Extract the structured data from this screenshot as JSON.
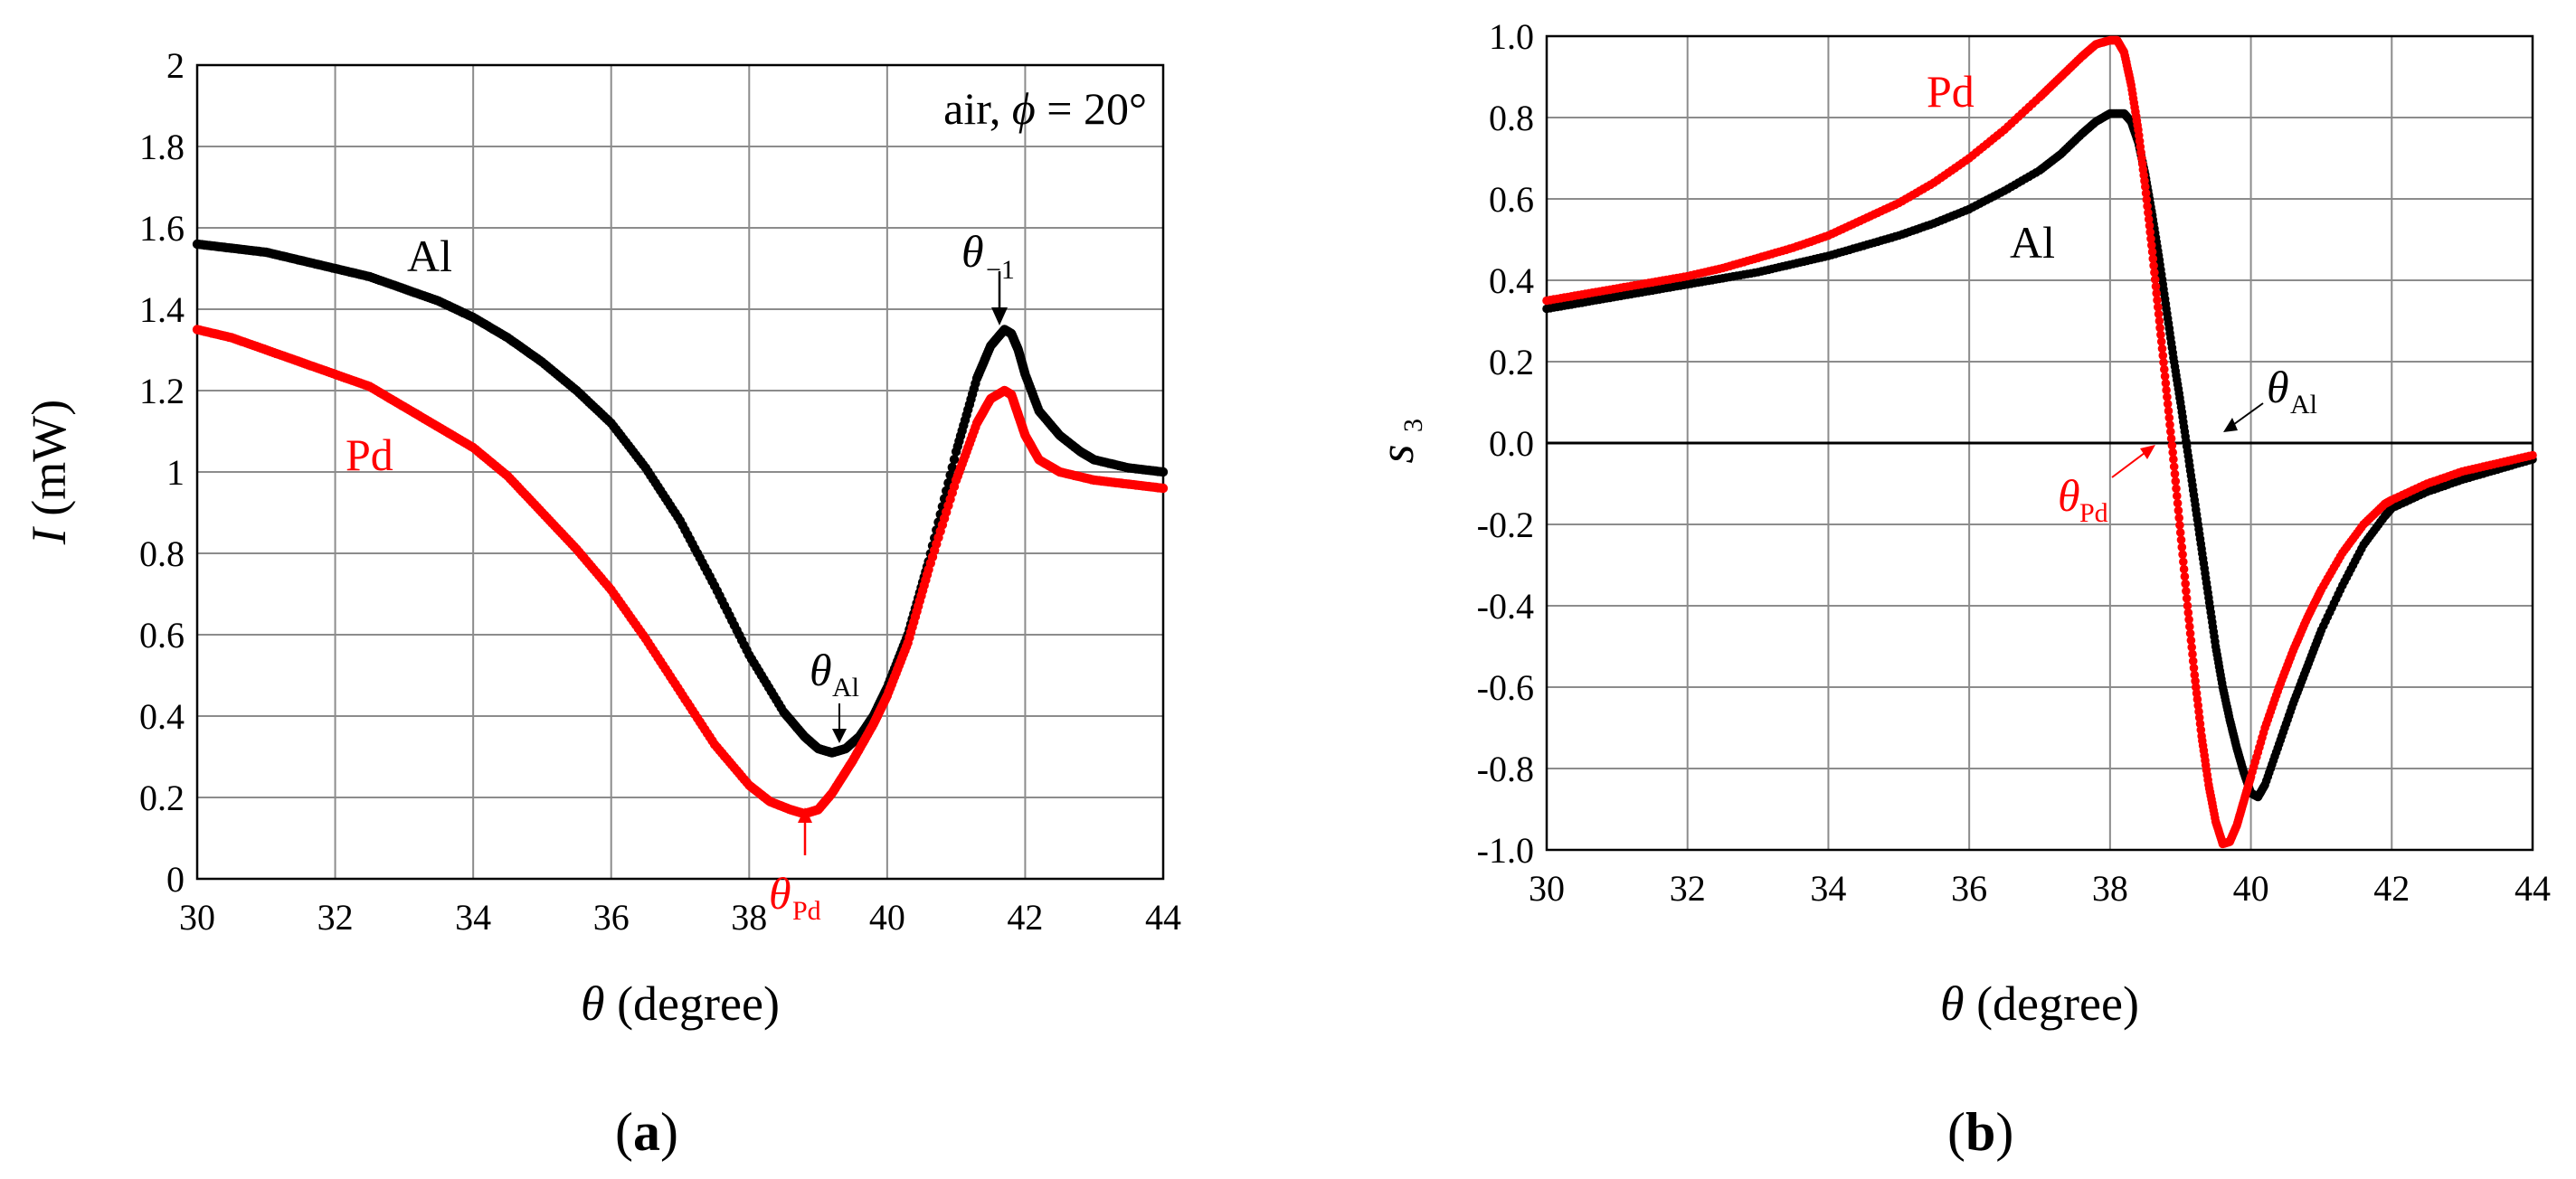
{
  "colors": {
    "Al": "#000000",
    "Pd": "#ff0000"
  },
  "chart_data": [
    {
      "panel_label": "(a)",
      "type": "scatter",
      "title": "",
      "xlabel": {
        "sym": "θ",
        "text": " (degree)"
      },
      "ylabel": {
        "sym": "I",
        "text": " (mW)"
      },
      "xlim": [
        30,
        44
      ],
      "ylim": [
        0,
        2
      ],
      "xticks": [
        30,
        32,
        34,
        36,
        38,
        40,
        42,
        44
      ],
      "xtick_labels": [
        "30",
        "32",
        "34",
        "36",
        "38",
        "40",
        "42",
        "44"
      ],
      "yticks": [
        0,
        0.2,
        0.4,
        0.6,
        0.8,
        1,
        1.2,
        1.4,
        1.6,
        1.8,
        2
      ],
      "ytick_labels": [
        "0",
        "0.2",
        "0.4",
        "0.6",
        "0.8",
        "1",
        "1.2",
        "1.4",
        "1.6",
        "1.8",
        "2"
      ],
      "grid": true,
      "annotation": {
        "pre": "air, ",
        "sym": "ϕ",
        "post": " = 20°"
      },
      "series_labels": {
        "Al": "Al",
        "Pd": "Pd"
      },
      "markers": {
        "theta_sym": "θ",
        "Al_sub": "Al",
        "Pd_sub": "Pd",
        "minus1_sub": "−1"
      },
      "series": [
        {
          "name": "Al",
          "x": [
            30,
            30.5,
            31,
            31.5,
            32,
            32.5,
            33,
            33.5,
            34,
            34.5,
            35,
            35.5,
            36,
            36.5,
            37,
            37.5,
            38,
            38.5,
            38.8,
            39,
            39.2,
            39.4,
            39.6,
            39.8,
            40,
            40.3,
            40.6,
            41,
            41.3,
            41.5,
            41.7,
            41.8,
            41.9,
            42,
            42.2,
            42.5,
            42.8,
            43,
            43.5,
            44
          ],
          "y": [
            1.56,
            1.55,
            1.54,
            1.52,
            1.5,
            1.48,
            1.45,
            1.42,
            1.38,
            1.33,
            1.27,
            1.2,
            1.12,
            1.01,
            0.88,
            0.72,
            0.55,
            0.41,
            0.35,
            0.32,
            0.31,
            0.32,
            0.35,
            0.4,
            0.47,
            0.6,
            0.78,
            1.05,
            1.23,
            1.31,
            1.35,
            1.34,
            1.3,
            1.24,
            1.15,
            1.09,
            1.05,
            1.03,
            1.01,
            1.0
          ]
        },
        {
          "name": "Pd",
          "x": [
            30,
            30.5,
            31,
            31.5,
            32,
            32.5,
            33,
            33.5,
            34,
            34.5,
            35,
            35.5,
            36,
            36.5,
            37,
            37.5,
            38,
            38.3,
            38.6,
            38.8,
            39,
            39.2,
            39.5,
            39.8,
            40,
            40.3,
            40.6,
            41,
            41.3,
            41.5,
            41.7,
            41.8,
            41.9,
            42,
            42.2,
            42.5,
            43,
            43.5,
            44
          ],
          "y": [
            1.35,
            1.33,
            1.3,
            1.27,
            1.24,
            1.21,
            1.16,
            1.11,
            1.06,
            0.99,
            0.9,
            0.81,
            0.71,
            0.59,
            0.46,
            0.33,
            0.23,
            0.19,
            0.17,
            0.16,
            0.17,
            0.21,
            0.29,
            0.38,
            0.45,
            0.58,
            0.76,
            0.98,
            1.12,
            1.18,
            1.2,
            1.19,
            1.14,
            1.09,
            1.03,
            1.0,
            0.98,
            0.97,
            0.96
          ]
        }
      ]
    },
    {
      "panel_label": "(b)",
      "type": "scatter",
      "title": "",
      "xlabel": {
        "sym": "θ",
        "text": " (degree)"
      },
      "ylabel": {
        "sym": "s",
        "sub": "3"
      },
      "xlim": [
        30,
        44
      ],
      "ylim": [
        -1,
        1
      ],
      "xticks": [
        30,
        32,
        34,
        36,
        38,
        40,
        42,
        44
      ],
      "xtick_labels": [
        "30",
        "32",
        "34",
        "36",
        "38",
        "40",
        "42",
        "44"
      ],
      "yticks": [
        -1,
        -0.8,
        -0.6,
        -0.4,
        -0.2,
        0,
        0.2,
        0.4,
        0.6,
        0.8,
        1
      ],
      "ytick_labels": [
        "-1.0",
        "-0.8",
        "-0.6",
        "-0.4",
        "-0.2",
        "0.0",
        "0.2",
        "0.4",
        "0.6",
        "0.8",
        "1.0"
      ],
      "grid": true,
      "series_labels": {
        "Al": "Al",
        "Pd": "Pd"
      },
      "markers": {
        "theta_sym": "θ",
        "Al_sub": "Al",
        "Pd_sub": "Pd"
      },
      "series": [
        {
          "name": "Al",
          "x": [
            30,
            30.5,
            31,
            31.5,
            32,
            32.5,
            33,
            33.5,
            34,
            34.5,
            35,
            35.5,
            36,
            36.5,
            37,
            37.3,
            37.6,
            37.8,
            38,
            38.2,
            38.3,
            38.4,
            38.5,
            38.6,
            38.7,
            38.8,
            38.9,
            39,
            39.1,
            39.2,
            39.3,
            39.4,
            39.5,
            39.6,
            39.7,
            39.8,
            39.9,
            40,
            40.1,
            40.2,
            40.4,
            40.6,
            40.8,
            41,
            41.3,
            41.6,
            41.9,
            42,
            42.5,
            43,
            43.5,
            44
          ],
          "y": [
            0.33,
            0.345,
            0.36,
            0.375,
            0.39,
            0.405,
            0.42,
            0.44,
            0.46,
            0.485,
            0.51,
            0.54,
            0.575,
            0.62,
            0.67,
            0.71,
            0.76,
            0.79,
            0.81,
            0.81,
            0.79,
            0.74,
            0.66,
            0.56,
            0.45,
            0.33,
            0.21,
            0.1,
            -0.02,
            -0.14,
            -0.26,
            -0.38,
            -0.5,
            -0.6,
            -0.68,
            -0.75,
            -0.81,
            -0.86,
            -0.87,
            -0.84,
            -0.74,
            -0.64,
            -0.55,
            -0.46,
            -0.35,
            -0.25,
            -0.18,
            -0.16,
            -0.12,
            -0.09,
            -0.065,
            -0.04
          ]
        },
        {
          "name": "Pd",
          "x": [
            30,
            30.5,
            31,
            31.5,
            32,
            32.5,
            33,
            33.5,
            34,
            34.5,
            35,
            35.5,
            36,
            36.5,
            37,
            37.3,
            37.6,
            37.8,
            38,
            38.1,
            38.2,
            38.3,
            38.4,
            38.5,
            38.6,
            38.7,
            38.8,
            38.9,
            39,
            39.1,
            39.2,
            39.3,
            39.4,
            39.5,
            39.6,
            39.7,
            39.8,
            39.9,
            40,
            40.2,
            40.4,
            40.6,
            40.8,
            41,
            41.3,
            41.6,
            41.9,
            42,
            42.5,
            43,
            43.5,
            44
          ],
          "y": [
            0.35,
            0.365,
            0.38,
            0.395,
            0.41,
            0.43,
            0.455,
            0.48,
            0.51,
            0.55,
            0.59,
            0.64,
            0.7,
            0.77,
            0.85,
            0.9,
            0.95,
            0.98,
            0.99,
            0.99,
            0.96,
            0.88,
            0.77,
            0.63,
            0.47,
            0.3,
            0.13,
            -0.04,
            -0.22,
            -0.4,
            -0.57,
            -0.72,
            -0.84,
            -0.93,
            -0.985,
            -0.98,
            -0.94,
            -0.88,
            -0.82,
            -0.7,
            -0.6,
            -0.51,
            -0.43,
            -0.36,
            -0.27,
            -0.2,
            -0.15,
            -0.14,
            -0.1,
            -0.07,
            -0.05,
            -0.03
          ]
        }
      ]
    }
  ]
}
